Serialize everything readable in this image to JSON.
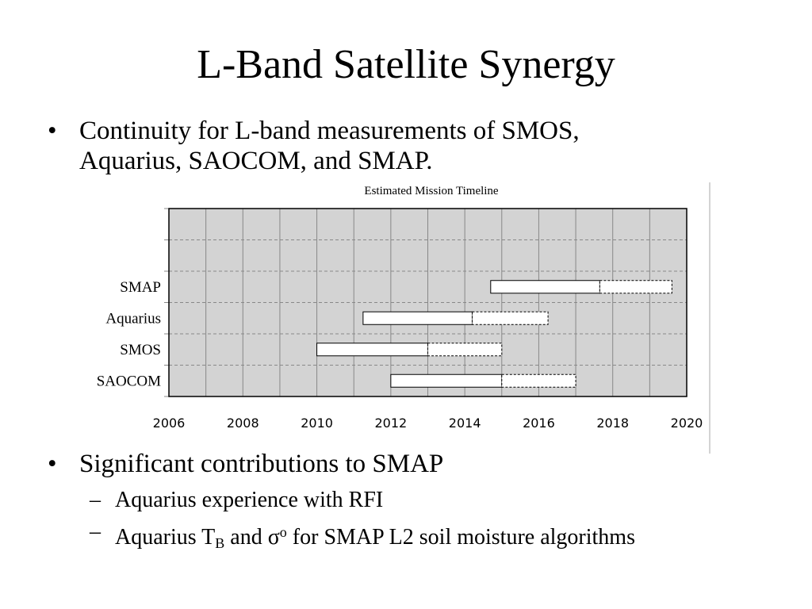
{
  "slide": {
    "title": "L-Band Satellite Synergy",
    "bullet_symbol": "•",
    "dash_symbol": "–",
    "bullets": [
      {
        "line1": "Continuity for L-band measurements of SMOS,",
        "line2": "Aquarius, SAOCOM, and SMAP."
      },
      {
        "line1": "Significant contributions to SMAP"
      }
    ],
    "sub_bullets": [
      {
        "text": "Aquarius experience with RFI"
      },
      {
        "pre": "Aquarius T",
        "sub": "B",
        "mid": " and ",
        "sigma": "σ",
        "sup": "o",
        "post": " for SMAP L2 soil moisture algorithms"
      }
    ]
  },
  "chart_data": {
    "type": "bar",
    "subtype": "gantt",
    "title": "Estimated Mission Timeline",
    "xlabel": "",
    "ylabel": "",
    "xlim": [
      2006,
      2020
    ],
    "xticks": [
      2006,
      2008,
      2010,
      2012,
      2014,
      2016,
      2018,
      2020
    ],
    "grid": true,
    "categories": [
      "SMAP",
      "Aquarius",
      "SMOS",
      "SAOCOM"
    ],
    "series": [
      {
        "style": "solid",
        "values": [
          [
            2014.7,
            2017.65
          ],
          [
            2011.25,
            2014.2
          ],
          [
            2010.0,
            2013.0
          ],
          [
            2012.0,
            2015.0
          ]
        ]
      },
      {
        "style": "dashed",
        "values": [
          [
            2017.65,
            2019.6
          ],
          [
            2014.2,
            2016.25
          ],
          [
            2013.0,
            2015.0
          ],
          [
            2015.0,
            2017.0
          ]
        ]
      }
    ],
    "colors": {
      "plot_bg": "#d3d3d3",
      "bar_fill": "#ffffff",
      "grid": "#888888",
      "frame": "#000000"
    }
  }
}
